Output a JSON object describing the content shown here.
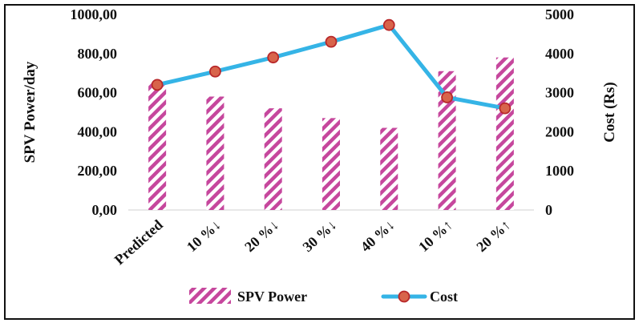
{
  "chart_data": {
    "type": "bar+line",
    "categories": [
      "Predicted",
      "10 %↓",
      "20 %↓",
      "30 %↓",
      "40 %↓",
      "10 %↑",
      "20 %↑"
    ],
    "series": [
      {
        "name": "SPV Power",
        "type": "bar",
        "axis": "left",
        "values": [
          650,
          580,
          520,
          470,
          420,
          710,
          780
        ],
        "color": "#C6479D"
      },
      {
        "name": "Cost",
        "type": "line",
        "axis": "right",
        "values": [
          3200,
          3540,
          3900,
          4300,
          4730,
          2880,
          2600
        ],
        "color": "#35B4E6",
        "marker_fill": "#D8644B",
        "marker_edge": "#B8282A"
      }
    ],
    "ylabel_left": "SPV Power/day",
    "ylabel_right": "Cost (Rs)",
    "ylim_left": [
      0,
      1000
    ],
    "ylim_right": [
      0,
      5000
    ],
    "yticks_left": [
      "0,00",
      "200,00",
      "400,00",
      "600,00",
      "800,00",
      "1000,00"
    ],
    "yticks_right": [
      "0",
      "1000",
      "2000",
      "3000",
      "4000",
      "5000"
    ],
    "legend": {
      "position": "bottom",
      "items": [
        "SPV Power",
        "Cost"
      ]
    },
    "grid": false,
    "frame_color": "#111111",
    "axis_color": "#d9d9d9"
  }
}
